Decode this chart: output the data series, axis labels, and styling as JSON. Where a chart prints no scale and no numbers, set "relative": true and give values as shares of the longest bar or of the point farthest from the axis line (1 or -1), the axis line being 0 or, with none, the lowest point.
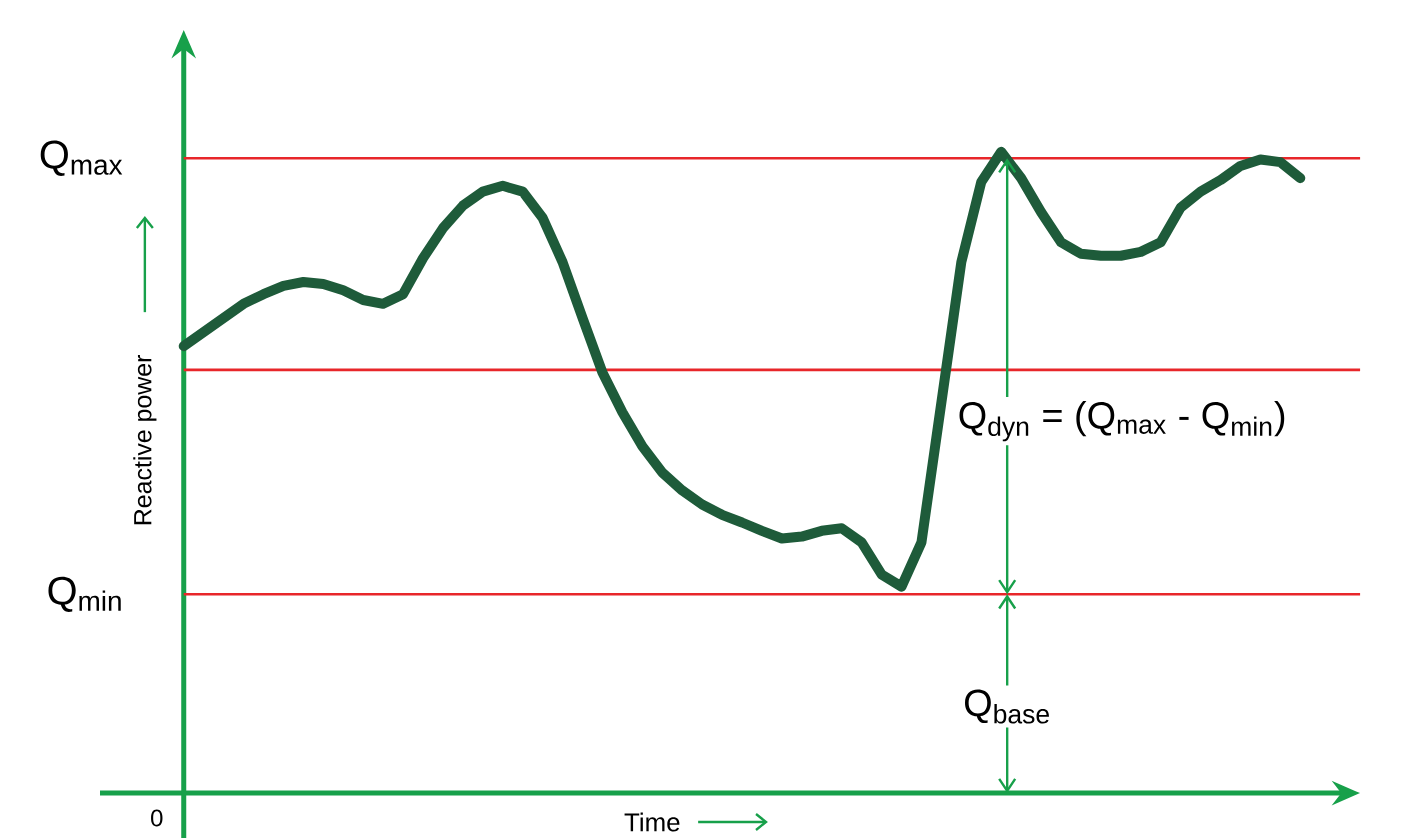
{
  "chart_data": {
    "type": "line",
    "relative": true,
    "xlabel": "Time",
    "ylabel": "Reactive power",
    "categories": [
      null,
      null,
      null,
      null,
      null,
      null,
      null,
      null,
      null,
      null,
      null,
      null,
      null,
      null,
      null,
      null,
      null,
      null,
      null,
      null,
      null,
      null,
      null,
      null,
      null,
      null,
      null,
      null,
      null,
      null,
      null,
      null,
      null,
      null,
      null,
      null,
      null,
      null,
      null,
      null,
      null,
      null,
      null,
      null,
      null,
      null,
      null,
      null,
      null,
      null,
      null,
      null,
      null,
      null,
      null,
      null,
      null
    ],
    "series": [
      {
        "color": "#1e5b3a",
        "values": [
          0.697,
          0.719,
          0.741,
          0.763,
          0.778,
          0.791,
          0.797,
          0.794,
          0.784,
          0.769,
          0.763,
          0.778,
          0.834,
          0.881,
          0.916,
          0.938,
          0.947,
          0.938,
          0.897,
          0.828,
          0.741,
          0.656,
          0.594,
          0.541,
          0.5,
          0.472,
          0.45,
          0.434,
          0.422,
          0.409,
          0.397,
          0.4,
          0.409,
          0.413,
          0.391,
          0.341,
          0.322,
          0.391,
          0.609,
          0.828,
          0.953,
          1,
          0.959,
          0.906,
          0.859,
          0.841,
          0.838,
          0.838,
          0.844,
          0.859,
          0.913,
          0.938,
          0.956,
          0.978,
          0.988,
          0.984,
          0.959
        ]
      }
    ],
    "ref_lines": [
      {
        "axis": "y",
        "value": 0.99,
        "label": "Q$_{max}$",
        "color": "#e8262a"
      },
      {
        "axis": "y",
        "value": 0.66,
        "color": "#e8262a"
      },
      {
        "axis": "y",
        "value": 0.31,
        "label": "Q$_{min}$",
        "color": "#e8262a"
      }
    ],
    "annotations": [
      "Q$_{dyn}$ = (Q$_{max}$ - Q$_{min}$)",
      "Q$_{base}$",
      "0"
    ],
    "marker": "none",
    "line_style": "solid"
  }
}
